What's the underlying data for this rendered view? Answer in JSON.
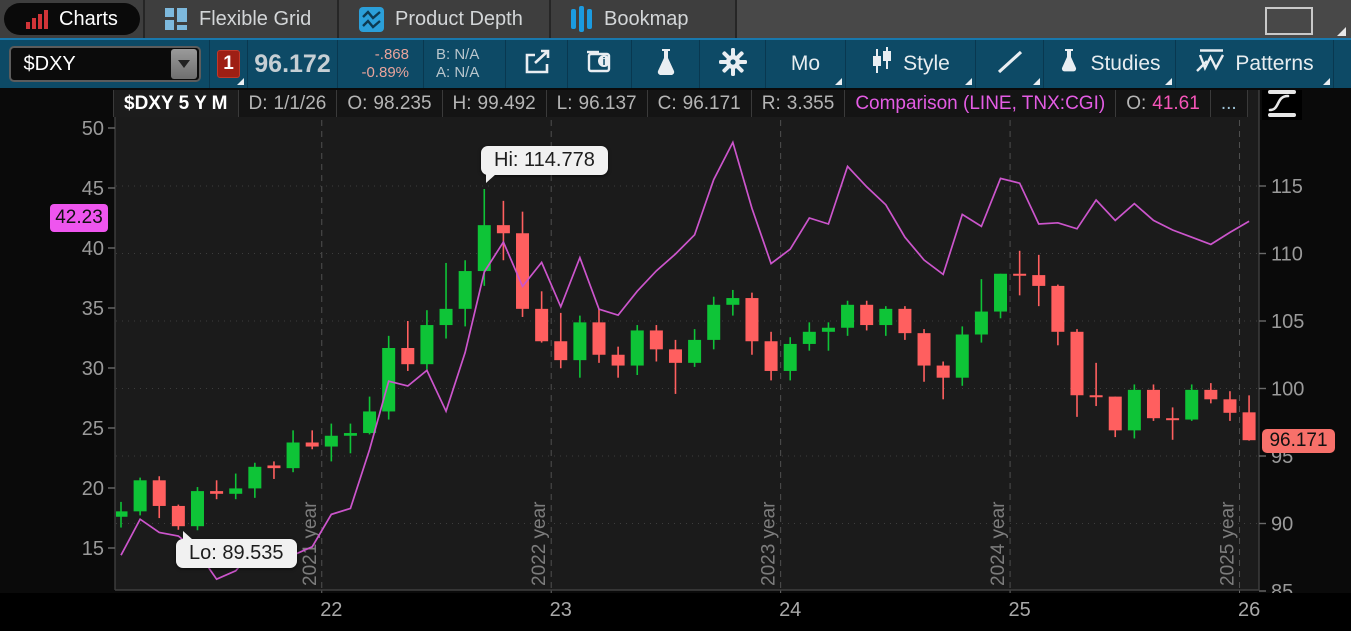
{
  "tabs": {
    "items": [
      {
        "label": "Charts",
        "active": true
      },
      {
        "label": "Flexible Grid",
        "active": false
      },
      {
        "label": "Product Depth",
        "active": false
      },
      {
        "label": "Bookmap",
        "active": false
      }
    ]
  },
  "toolbar": {
    "symbol": "$DXY",
    "flag_count": "1",
    "last": "96.172",
    "change": "-.868",
    "change_pct": "-0.89%",
    "bid": "B: N/A",
    "ask": "A: N/A",
    "timeframe": "Mo",
    "style_label": "Style",
    "studies_label": "Studies",
    "patterns_label": "Patterns"
  },
  "chart_header": {
    "title": "$DXY 5 Y M",
    "fields": [
      {
        "label": "D:",
        "value": "1/1/26"
      },
      {
        "label": "O:",
        "value": "98.235"
      },
      {
        "label": "H:",
        "value": "99.492"
      },
      {
        "label": "L:",
        "value": "96.137"
      },
      {
        "label": "C:",
        "value": "96.171"
      },
      {
        "label": "R:",
        "value": "3.355"
      }
    ],
    "comparison_text": "Comparison (LINE, TNX:CGI)",
    "comparison_open_label": "O:",
    "comparison_open_value": "41.61",
    "overflow": "..."
  },
  "chart_data": {
    "type": "candlestick+line",
    "symbol": "$DXY",
    "timeframe": "5 Y M",
    "months": [
      "2021-02",
      "2021-03",
      "2021-04",
      "2021-05",
      "2021-06",
      "2021-07",
      "2021-08",
      "2021-09",
      "2021-10",
      "2021-11",
      "2021-12",
      "2022-01",
      "2022-02",
      "2022-03",
      "2022-04",
      "2022-05",
      "2022-06",
      "2022-07",
      "2022-08",
      "2022-09",
      "2022-10",
      "2022-11",
      "2022-12",
      "2023-01",
      "2023-02",
      "2023-03",
      "2023-04",
      "2023-05",
      "2023-06",
      "2023-07",
      "2023-08",
      "2023-09",
      "2023-10",
      "2023-11",
      "2023-12",
      "2024-01",
      "2024-02",
      "2024-03",
      "2024-04",
      "2024-05",
      "2024-06",
      "2024-07",
      "2024-08",
      "2024-09",
      "2024-10",
      "2024-11",
      "2024-12",
      "2025-01",
      "2025-02",
      "2025-03",
      "2025-04",
      "2025-05",
      "2025-06",
      "2025-07",
      "2025-08",
      "2025-09",
      "2025-10",
      "2025-11",
      "2025-12",
      "2026-01"
    ],
    "candles": [
      [
        90.5,
        91.6,
        89.7,
        90.9
      ],
      [
        90.9,
        93.4,
        90.6,
        93.2
      ],
      [
        93.2,
        93.5,
        90.4,
        91.3
      ],
      [
        91.3,
        91.4,
        89.535,
        89.8
      ],
      [
        89.8,
        92.7,
        89.5,
        92.4
      ],
      [
        92.4,
        93.2,
        91.8,
        92.2
      ],
      [
        92.2,
        93.7,
        91.8,
        92.6
      ],
      [
        92.6,
        94.5,
        91.9,
        94.2
      ],
      [
        94.3,
        94.6,
        93.3,
        94.1
      ],
      [
        94.1,
        96.9,
        93.8,
        96.0
      ],
      [
        96.0,
        96.9,
        95.5,
        95.7
      ],
      [
        95.7,
        97.4,
        94.6,
        96.5
      ],
      [
        96.5,
        97.4,
        95.2,
        96.7
      ],
      [
        96.7,
        99.4,
        96.6,
        98.3
      ],
      [
        98.3,
        103.9,
        97.7,
        103.0
      ],
      [
        103.0,
        105.0,
        101.3,
        101.8
      ],
      [
        101.8,
        105.8,
        101.4,
        104.7
      ],
      [
        104.7,
        109.3,
        103.7,
        105.9
      ],
      [
        105.9,
        109.5,
        104.6,
        108.7
      ],
      [
        108.7,
        114.778,
        107.6,
        112.1
      ],
      [
        112.1,
        113.9,
        109.5,
        111.5
      ],
      [
        111.5,
        113.1,
        105.3,
        105.9
      ],
      [
        105.9,
        107.2,
        103.4,
        103.5
      ],
      [
        103.5,
        105.6,
        101.5,
        102.1
      ],
      [
        102.1,
        105.4,
        100.8,
        104.9
      ],
      [
        104.9,
        105.9,
        101.9,
        102.5
      ],
      [
        102.5,
        103.1,
        100.8,
        101.7
      ],
      [
        101.7,
        104.7,
        101.0,
        104.3
      ],
      [
        104.3,
        104.7,
        102.0,
        102.9
      ],
      [
        102.9,
        103.6,
        99.6,
        101.9
      ],
      [
        101.9,
        104.4,
        101.6,
        103.6
      ],
      [
        103.6,
        106.8,
        102.9,
        106.2
      ],
      [
        106.2,
        107.3,
        105.4,
        106.7
      ],
      [
        106.7,
        107.1,
        102.5,
        103.5
      ],
      [
        103.5,
        104.2,
        100.6,
        101.3
      ],
      [
        101.3,
        103.8,
        100.6,
        103.3
      ],
      [
        103.3,
        104.9,
        102.8,
        104.2
      ],
      [
        104.2,
        104.9,
        102.8,
        104.5
      ],
      [
        104.5,
        106.5,
        103.9,
        106.2
      ],
      [
        106.2,
        106.5,
        104.3,
        104.7
      ],
      [
        104.7,
        106.1,
        103.9,
        105.9
      ],
      [
        105.9,
        106.1,
        103.6,
        104.1
      ],
      [
        104.1,
        104.4,
        100.5,
        101.7
      ],
      [
        101.7,
        102.0,
        99.2,
        100.8
      ],
      [
        100.8,
        104.6,
        100.2,
        104.0
      ],
      [
        104.0,
        108.1,
        103.4,
        105.7
      ],
      [
        105.7,
        108.5,
        105.2,
        108.5
      ],
      [
        108.5,
        110.2,
        106.9,
        108.4
      ],
      [
        108.4,
        109.9,
        106.1,
        107.6
      ],
      [
        107.6,
        107.7,
        103.2,
        104.2
      ],
      [
        104.2,
        104.4,
        97.9,
        99.5
      ],
      [
        99.5,
        101.9,
        98.7,
        99.4
      ],
      [
        99.4,
        99.4,
        96.4,
        96.9
      ],
      [
        96.9,
        100.3,
        96.3,
        99.9
      ],
      [
        99.9,
        100.3,
        97.6,
        97.8
      ],
      [
        97.8,
        98.6,
        96.2,
        97.7
      ],
      [
        97.7,
        100.3,
        97.6,
        99.9
      ],
      [
        99.9,
        100.4,
        98.9,
        99.2
      ],
      [
        99.2,
        99.8,
        97.6,
        98.2
      ],
      [
        98.235,
        99.492,
        96.137,
        96.171
      ]
    ],
    "comparison": {
      "name": "TNX:CGI",
      "style": "LINE",
      "color": "#cc55cc",
      "last_label": "42.23",
      "values": [
        14.4,
        17.4,
        16.3,
        16.0,
        14.7,
        12.4,
        13.1,
        14.9,
        15.6,
        14.4,
        15.1,
        17.8,
        18.3,
        23.2,
        28.9,
        28.5,
        29.8,
        26.4,
        31.3,
        38.0,
        40.5,
        36.8,
        38.8,
        35.1,
        39.2,
        34.9,
        34.4,
        36.4,
        38.1,
        39.5,
        41.1,
        45.7,
        48.8,
        43.3,
        38.7,
        39.9,
        42.5,
        42.0,
        46.8,
        45.1,
        43.6,
        40.9,
        39.0,
        37.8,
        42.8,
        41.8,
        45.8,
        45.4,
        42.0,
        42.1,
        41.6,
        44.0,
        42.3,
        43.7,
        42.3,
        41.5,
        40.9,
        40.3,
        41.3,
        42.23
      ]
    },
    "left_axis": {
      "ticks": [
        50,
        45,
        40,
        35,
        30,
        25,
        20,
        15
      ]
    },
    "right_axis": {
      "ticks": [
        115,
        110,
        105,
        100,
        95,
        90,
        85
      ],
      "last_label": "96.171"
    },
    "x_axis": {
      "ticks": [
        "22",
        "23",
        "24",
        "25",
        "26"
      ],
      "year_lines": [
        "2021 year",
        "2022 year",
        "2023 year",
        "2024 year",
        "2025 year"
      ]
    },
    "annotations": {
      "hi": "Hi: 114.778",
      "lo": "Lo: 89.535"
    },
    "colors": {
      "up": "#0ec437",
      "down": "#ff5f5f",
      "plot_bg": "#1b1b1b"
    }
  }
}
